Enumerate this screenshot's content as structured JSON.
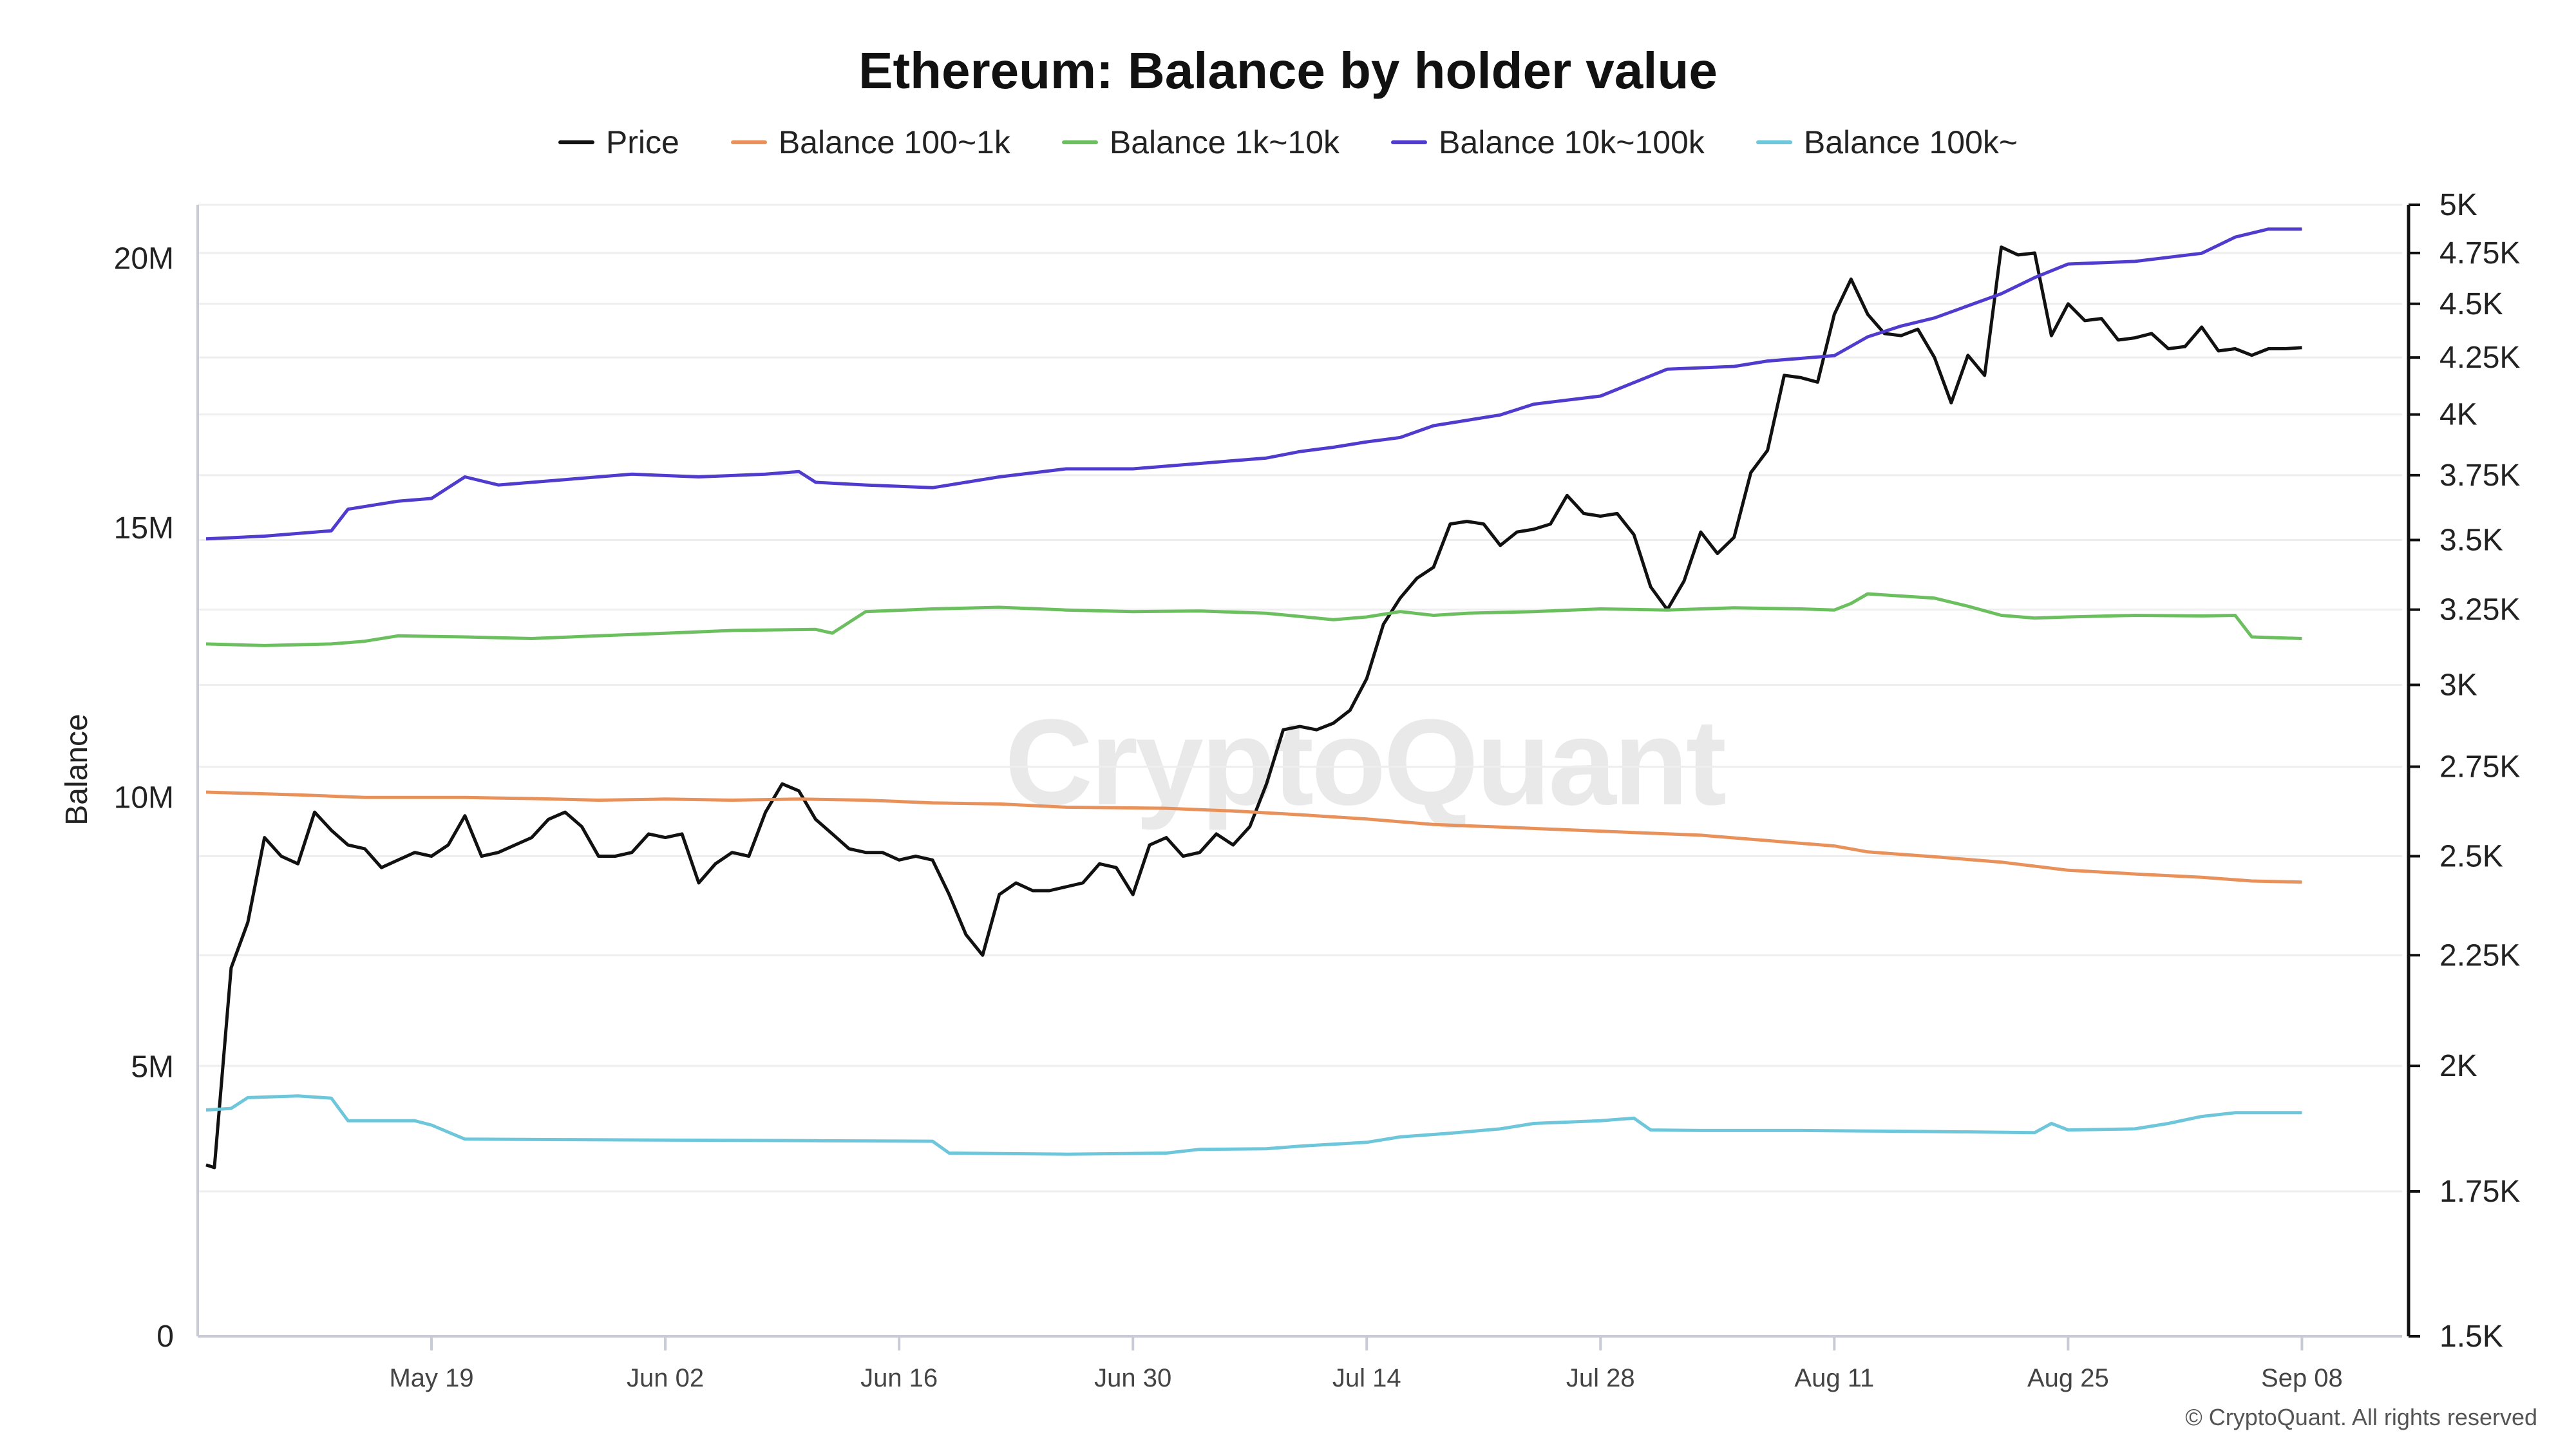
{
  "chart_data": {
    "type": "line",
    "title": "Ethereum: Balance by holder value",
    "ylabel": "Balance",
    "y_left": {
      "range": [
        0,
        21000000
      ],
      "ticks": [
        0,
        5000000,
        10000000,
        15000000,
        20000000
      ],
      "tick_labels": [
        "0",
        "5M",
        "10M",
        "15M",
        "20M"
      ]
    },
    "y_right": {
      "scale": "log",
      "range": [
        1500,
        5000
      ],
      "ticks": [
        1500,
        1750,
        2000,
        2250,
        2500,
        2750,
        3000,
        3250,
        3500,
        3750,
        4000,
        4250,
        4500,
        4750,
        5000
      ],
      "tick_labels": [
        "1.5K",
        "1.75K",
        "2K",
        "2.25K",
        "2.5K",
        "2.75K",
        "3K",
        "3.25K",
        "3.5K",
        "3.75K",
        "4K",
        "4.25K",
        "4.5K",
        "4.75K",
        "5K"
      ]
    },
    "x_range_days": [
      0,
      132
    ],
    "x_ticks": [
      {
        "label": "May 19",
        "day": 14
      },
      {
        "label": "Jun 02",
        "day": 28
      },
      {
        "label": "Jun 16",
        "day": 42
      },
      {
        "label": "Jun 30",
        "day": 56
      },
      {
        "label": "Jul 14",
        "day": 70
      },
      {
        "label": "Jul 28",
        "day": 84
      },
      {
        "label": "Aug 11",
        "day": 98
      },
      {
        "label": "Aug 25",
        "day": 112
      },
      {
        "label": "Sep 08",
        "day": 126
      }
    ],
    "series": [
      {
        "name": "Price",
        "axis": "right",
        "color": "#111111",
        "points": [
          [
            0.5,
            1800
          ],
          [
            1,
            1795
          ],
          [
            2,
            2220
          ],
          [
            3,
            2330
          ],
          [
            4,
            2550
          ],
          [
            5,
            2500
          ],
          [
            6,
            2480
          ],
          [
            7,
            2620
          ],
          [
            8,
            2570
          ],
          [
            9,
            2530
          ],
          [
            10,
            2520
          ],
          [
            11,
            2470
          ],
          [
            12,
            2490
          ],
          [
            13,
            2510
          ],
          [
            14,
            2500
          ],
          [
            15,
            2530
          ],
          [
            16,
            2610
          ],
          [
            17,
            2500
          ],
          [
            18,
            2510
          ],
          [
            19,
            2530
          ],
          [
            20,
            2550
          ],
          [
            21,
            2600
          ],
          [
            22,
            2620
          ],
          [
            23,
            2580
          ],
          [
            24,
            2500
          ],
          [
            25,
            2500
          ],
          [
            26,
            2510
          ],
          [
            27,
            2560
          ],
          [
            28,
            2550
          ],
          [
            29,
            2560
          ],
          [
            30,
            2430
          ],
          [
            31,
            2480
          ],
          [
            32,
            2510
          ],
          [
            33,
            2500
          ],
          [
            34,
            2620
          ],
          [
            35,
            2700
          ],
          [
            36,
            2680
          ],
          [
            37,
            2600
          ],
          [
            38,
            2560
          ],
          [
            39,
            2520
          ],
          [
            40,
            2510
          ],
          [
            41,
            2510
          ],
          [
            42,
            2490
          ],
          [
            43,
            2500
          ],
          [
            44,
            2490
          ],
          [
            45,
            2400
          ],
          [
            46,
            2300
          ],
          [
            47,
            2250
          ],
          [
            48,
            2400
          ],
          [
            49,
            2430
          ],
          [
            50,
            2410
          ],
          [
            51,
            2410
          ],
          [
            52,
            2420
          ],
          [
            53,
            2430
          ],
          [
            54,
            2480
          ],
          [
            55,
            2470
          ],
          [
            56,
            2400
          ],
          [
            57,
            2530
          ],
          [
            58,
            2550
          ],
          [
            59,
            2500
          ],
          [
            60,
            2510
          ],
          [
            61,
            2560
          ],
          [
            62,
            2530
          ],
          [
            63,
            2580
          ],
          [
            64,
            2700
          ],
          [
            65,
            2860
          ],
          [
            66,
            2870
          ],
          [
            67,
            2860
          ],
          [
            68,
            2880
          ],
          [
            69,
            2920
          ],
          [
            70,
            3020
          ],
          [
            71,
            3200
          ],
          [
            72,
            3290
          ],
          [
            73,
            3360
          ],
          [
            74,
            3400
          ],
          [
            75,
            3560
          ],
          [
            76,
            3570
          ],
          [
            77,
            3560
          ],
          [
            78,
            3480
          ],
          [
            79,
            3530
          ],
          [
            80,
            3540
          ],
          [
            81,
            3560
          ],
          [
            82,
            3670
          ],
          [
            83,
            3600
          ],
          [
            84,
            3590
          ],
          [
            85,
            3600
          ],
          [
            86,
            3520
          ],
          [
            87,
            3330
          ],
          [
            88,
            3250
          ],
          [
            89,
            3350
          ],
          [
            90,
            3530
          ],
          [
            91,
            3450
          ],
          [
            92,
            3510
          ],
          [
            93,
            3760
          ],
          [
            94,
            3850
          ],
          [
            95,
            4170
          ],
          [
            96,
            4160
          ],
          [
            97,
            4140
          ],
          [
            98,
            4450
          ],
          [
            99,
            4620
          ],
          [
            100,
            4450
          ],
          [
            101,
            4360
          ],
          [
            102,
            4350
          ],
          [
            103,
            4380
          ],
          [
            104,
            4250
          ],
          [
            105,
            4050
          ],
          [
            106,
            4260
          ],
          [
            107,
            4170
          ],
          [
            108,
            4780
          ],
          [
            109,
            4740
          ],
          [
            110,
            4750
          ],
          [
            111,
            4350
          ],
          [
            112,
            4500
          ],
          [
            113,
            4420
          ],
          [
            114,
            4430
          ],
          [
            115,
            4330
          ],
          [
            116,
            4340
          ],
          [
            117,
            4360
          ],
          [
            118,
            4290
          ],
          [
            119,
            4300
          ],
          [
            120,
            4390
          ],
          [
            121,
            4280
          ],
          [
            122,
            4290
          ],
          [
            123,
            4260
          ],
          [
            124,
            4290
          ],
          [
            125,
            4290
          ],
          [
            126,
            4295
          ]
        ]
      },
      {
        "name": "Balance 100~1k",
        "axis": "left",
        "color": "#e8915a",
        "points": [
          [
            0.5,
            10100000
          ],
          [
            6,
            10050000
          ],
          [
            10,
            10000000
          ],
          [
            16,
            10000000
          ],
          [
            20,
            9980000
          ],
          [
            24,
            9950000
          ],
          [
            28,
            9970000
          ],
          [
            32,
            9950000
          ],
          [
            36,
            9970000
          ],
          [
            40,
            9950000
          ],
          [
            44,
            9900000
          ],
          [
            48,
            9880000
          ],
          [
            52,
            9820000
          ],
          [
            58,
            9800000
          ],
          [
            62,
            9750000
          ],
          [
            66,
            9680000
          ],
          [
            70,
            9600000
          ],
          [
            74,
            9500000
          ],
          [
            78,
            9450000
          ],
          [
            82,
            9400000
          ],
          [
            86,
            9350000
          ],
          [
            90,
            9300000
          ],
          [
            94,
            9200000
          ],
          [
            98,
            9100000
          ],
          [
            100,
            8990000
          ],
          [
            104,
            8900000
          ],
          [
            108,
            8800000
          ],
          [
            112,
            8650000
          ],
          [
            116,
            8580000
          ],
          [
            120,
            8520000
          ],
          [
            123,
            8450000
          ],
          [
            126,
            8430000
          ]
        ]
      },
      {
        "name": "Balance 1k~10k",
        "axis": "left",
        "color": "#6cbf5f",
        "points": [
          [
            0.5,
            12850000
          ],
          [
            4,
            12820000
          ],
          [
            8,
            12850000
          ],
          [
            10,
            12900000
          ],
          [
            12,
            13000000
          ],
          [
            16,
            12980000
          ],
          [
            20,
            12950000
          ],
          [
            24,
            13000000
          ],
          [
            28,
            13050000
          ],
          [
            32,
            13100000
          ],
          [
            37,
            13120000
          ],
          [
            38,
            13050000
          ],
          [
            40,
            13450000
          ],
          [
            44,
            13500000
          ],
          [
            48,
            13530000
          ],
          [
            52,
            13480000
          ],
          [
            56,
            13450000
          ],
          [
            60,
            13460000
          ],
          [
            64,
            13420000
          ],
          [
            68,
            13300000
          ],
          [
            70,
            13350000
          ],
          [
            72,
            13450000
          ],
          [
            74,
            13380000
          ],
          [
            76,
            13420000
          ],
          [
            80,
            13450000
          ],
          [
            84,
            13500000
          ],
          [
            88,
            13480000
          ],
          [
            92,
            13520000
          ],
          [
            96,
            13500000
          ],
          [
            98,
            13480000
          ],
          [
            99,
            13600000
          ],
          [
            100,
            13780000
          ],
          [
            104,
            13700000
          ],
          [
            106,
            13550000
          ],
          [
            108,
            13380000
          ],
          [
            110,
            13330000
          ],
          [
            112,
            13350000
          ],
          [
            116,
            13380000
          ],
          [
            120,
            13370000
          ],
          [
            122,
            13380000
          ],
          [
            123,
            12980000
          ],
          [
            126,
            12950000
          ]
        ]
      },
      {
        "name": "Balance 10k~100k",
        "axis": "left",
        "color": "#4f3ccf",
        "points": [
          [
            0.5,
            14800000
          ],
          [
            4,
            14850000
          ],
          [
            8,
            14950000
          ],
          [
            9,
            15350000
          ],
          [
            12,
            15500000
          ],
          [
            14,
            15550000
          ],
          [
            16,
            15950000
          ],
          [
            18,
            15800000
          ],
          [
            22,
            15900000
          ],
          [
            26,
            16000000
          ],
          [
            30,
            15950000
          ],
          [
            34,
            16000000
          ],
          [
            36,
            16050000
          ],
          [
            37,
            15850000
          ],
          [
            40,
            15800000
          ],
          [
            44,
            15750000
          ],
          [
            48,
            15950000
          ],
          [
            52,
            16100000
          ],
          [
            56,
            16100000
          ],
          [
            60,
            16200000
          ],
          [
            64,
            16300000
          ],
          [
            66,
            16420000
          ],
          [
            68,
            16500000
          ],
          [
            70,
            16600000
          ],
          [
            72,
            16680000
          ],
          [
            74,
            16900000
          ],
          [
            78,
            17100000
          ],
          [
            80,
            17300000
          ],
          [
            84,
            17450000
          ],
          [
            86,
            17700000
          ],
          [
            88,
            17950000
          ],
          [
            92,
            18000000
          ],
          [
            94,
            18100000
          ],
          [
            98,
            18200000
          ],
          [
            100,
            18550000
          ],
          [
            102,
            18750000
          ],
          [
            104,
            18900000
          ],
          [
            108,
            19350000
          ],
          [
            110,
            19650000
          ],
          [
            112,
            19900000
          ],
          [
            116,
            19950000
          ],
          [
            120,
            20100000
          ],
          [
            122,
            20400000
          ],
          [
            124,
            20550000
          ],
          [
            126,
            20550000
          ]
        ]
      },
      {
        "name": "Balance 100k~",
        "axis": "left",
        "color": "#6ec6db",
        "points": [
          [
            0.5,
            4200000
          ],
          [
            2,
            4230000
          ],
          [
            3,
            4430000
          ],
          [
            6,
            4460000
          ],
          [
            8,
            4420000
          ],
          [
            9,
            4000000
          ],
          [
            13,
            4000000
          ],
          [
            14,
            3920000
          ],
          [
            16,
            3660000
          ],
          [
            22,
            3650000
          ],
          [
            30,
            3640000
          ],
          [
            37,
            3630000
          ],
          [
            44,
            3620000
          ],
          [
            45,
            3400000
          ],
          [
            52,
            3380000
          ],
          [
            58,
            3400000
          ],
          [
            60,
            3470000
          ],
          [
            64,
            3480000
          ],
          [
            66,
            3530000
          ],
          [
            70,
            3600000
          ],
          [
            72,
            3700000
          ],
          [
            75,
            3770000
          ],
          [
            78,
            3850000
          ],
          [
            80,
            3950000
          ],
          [
            84,
            4000000
          ],
          [
            86,
            4050000
          ],
          [
            87,
            3830000
          ],
          [
            90,
            3820000
          ],
          [
            96,
            3820000
          ],
          [
            100,
            3810000
          ],
          [
            104,
            3800000
          ],
          [
            110,
            3780000
          ],
          [
            111,
            3950000
          ],
          [
            112,
            3830000
          ],
          [
            116,
            3850000
          ],
          [
            118,
            3950000
          ],
          [
            120,
            4080000
          ],
          [
            122,
            4150000
          ],
          [
            126,
            4150000
          ]
        ]
      }
    ],
    "watermark": "CryptoQuant",
    "copyright": "© CryptoQuant. All rights reserved"
  }
}
